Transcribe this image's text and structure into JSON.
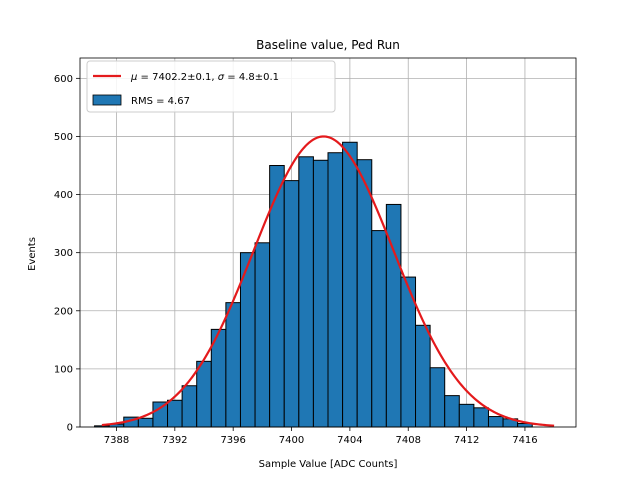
{
  "chart_data": {
    "type": "bar",
    "title": "Baseline value, Ped Run",
    "xlabel": "Sample Value [ADC Counts]",
    "ylabel": "Events",
    "xlim": [
      7385.5,
      7419.5
    ],
    "ylim": [
      0,
      635
    ],
    "xticks": [
      7388,
      7392,
      7396,
      7400,
      7404,
      7408,
      7412,
      7416
    ],
    "yticks": [
      0,
      100,
      200,
      300,
      400,
      500,
      600
    ],
    "grid": true,
    "legend_position": "top-left",
    "bin_width": 1,
    "bins": [
      {
        "x": 7387,
        "count": 2
      },
      {
        "x": 7388,
        "count": 5
      },
      {
        "x": 7389,
        "count": 17
      },
      {
        "x": 7390,
        "count": 15
      },
      {
        "x": 7391,
        "count": 43
      },
      {
        "x": 7392,
        "count": 46
      },
      {
        "x": 7393,
        "count": 71
      },
      {
        "x": 7394,
        "count": 113
      },
      {
        "x": 7395,
        "count": 168
      },
      {
        "x": 7396,
        "count": 214
      },
      {
        "x": 7397,
        "count": 300
      },
      {
        "x": 7398,
        "count": 317
      },
      {
        "x": 7399,
        "count": 450
      },
      {
        "x": 7400,
        "count": 424
      },
      {
        "x": 7401,
        "count": 465
      },
      {
        "x": 7402,
        "count": 459
      },
      {
        "x": 7403,
        "count": 472
      },
      {
        "x": 7404,
        "count": 490
      },
      {
        "x": 7405,
        "count": 460
      },
      {
        "x": 7406,
        "count": 338
      },
      {
        "x": 7407,
        "count": 383
      },
      {
        "x": 7408,
        "count": 258
      },
      {
        "x": 7409,
        "count": 175
      },
      {
        "x": 7410,
        "count": 102
      },
      {
        "x": 7411,
        "count": 54
      },
      {
        "x": 7412,
        "count": 39
      },
      {
        "x": 7413,
        "count": 33
      },
      {
        "x": 7414,
        "count": 18
      },
      {
        "x": 7415,
        "count": 14
      },
      {
        "x": 7416,
        "count": 6
      }
    ],
    "fit": {
      "type": "gaussian",
      "mu": 7402.2,
      "sigma": 4.8,
      "amplitude": 500,
      "x_range": [
        7387,
        7418
      ]
    },
    "series": [
      {
        "name": "RMS = 4.67",
        "kind": "histogram",
        "color": "#1f77b4"
      },
      {
        "name_prefix_mu": "μ",
        "name_rest_mu": " = 7402.2±0.1, ",
        "name_prefix_sigma": "σ",
        "name_rest_sigma": " = 4.8±0.1",
        "kind": "fit",
        "color": "#e41a1c"
      }
    ]
  }
}
